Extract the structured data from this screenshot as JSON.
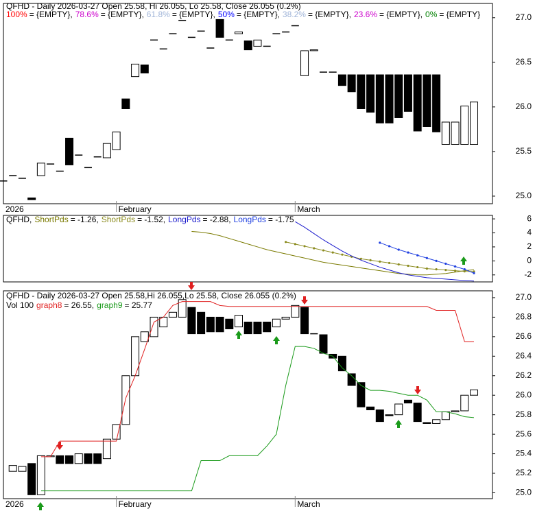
{
  "chart_data": [
    {
      "type": "candlestick",
      "title": "QFHD - Daily 2026-03-27 Open 25.58, Hi 26.055, Lo 25.58, Close 26.055 (0.2%)",
      "legend": [
        {
          "name": "100%",
          "color": "#ff0000",
          "label": "= {EMPTY},"
        },
        {
          "name": "78.6%",
          "color": "#cc00cc",
          "label": "= {EMPTY},"
        },
        {
          "name": "61.8%",
          "color": "#9fb4d8",
          "label": "= {EMPTY},"
        },
        {
          "name": "50%",
          "color": "#0000ff",
          "label": "= {EMPTY},"
        },
        {
          "name": "38.2%",
          "color": "#9fb4d8",
          "label": "= {EMPTY},"
        },
        {
          "name": "23.6%",
          "color": "#cc00cc",
          "label": "= {EMPTY},"
        },
        {
          "name": "0%",
          "color": "#008000",
          "label": "= {EMPTY}"
        }
      ],
      "categories": [
        "2026",
        null,
        null,
        null,
        null,
        null,
        null,
        null,
        null,
        null,
        null,
        null,
        "February",
        null,
        null,
        null,
        null,
        null,
        null,
        null,
        null,
        null,
        null,
        null,
        null,
        null,
        null,
        null,
        null,
        null,
        null,
        "March",
        null,
        null,
        null,
        null,
        null,
        null,
        null,
        null,
        null,
        null,
        null,
        null,
        null,
        null,
        null,
        null,
        null,
        null,
        null
      ],
      "open": [
        25.17,
        25.23,
        25.2,
        24.98,
        25.23,
        25.36,
        25.28,
        25.65,
        25.46,
        25.32,
        25.44,
        25.43,
        25.52,
        26.09,
        26.34,
        26.47,
        26.75,
        26.65,
        26.82,
        26.97,
        26.78,
        26.85,
        26.66,
        26.98,
        26.75,
        26.82,
        26.74,
        26.68,
        26.68,
        26.82,
        26.84,
        26.91,
        26.35,
        26.63,
        26.39,
        26.39,
        26.36,
        26.36,
        26.36,
        26.36,
        26.36,
        26.36,
        26.36,
        26.36,
        26.36,
        26.36,
        26.36,
        25.58,
        25.58,
        25.58,
        25.58
      ],
      "close": [
        25.17,
        25.23,
        25.2,
        24.96,
        25.37,
        25.36,
        25.28,
        25.35,
        25.46,
        25.32,
        25.44,
        25.59,
        25.72,
        25.98,
        26.48,
        26.38,
        26.75,
        26.65,
        26.82,
        26.97,
        26.78,
        26.85,
        26.66,
        26.78,
        26.75,
        26.84,
        26.64,
        26.75,
        26.68,
        26.82,
        26.84,
        26.91,
        26.63,
        26.64,
        26.39,
        26.39,
        26.24,
        26.17,
        25.98,
        25.94,
        25.82,
        25.82,
        25.88,
        25.95,
        25.73,
        25.78,
        25.72,
        25.83,
        25.83,
        26.01,
        26.055
      ],
      "ylim": [
        24.915,
        27.16
      ],
      "yticks": [
        {
          "value": 25,
          "label": "25.0"
        },
        25.5,
        {
          "value": 26,
          "label": "26.0"
        },
        26.5,
        {
          "value": 27,
          "label": "27.0"
        }
      ]
    },
    {
      "type": "line",
      "ticker": "QFHD,",
      "series": [
        {
          "name": "ShortPds",
          "label": "= -1.26,",
          "color": "#7a7a00",
          "markers": false,
          "values": [
            null,
            null,
            null,
            null,
            null,
            null,
            null,
            null,
            null,
            null,
            null,
            null,
            null,
            null,
            null,
            null,
            null,
            null,
            null,
            null,
            4.2,
            4.1,
            3.9,
            3.6,
            3.2,
            2.8,
            2.4,
            2.0,
            1.6,
            1.3,
            1.0,
            0.7,
            0.4,
            0.1,
            -0.2,
            -0.4,
            -0.6,
            -0.8,
            -1.0,
            -1.2,
            -1.4,
            -1.6,
            -1.8,
            -1.9,
            -2.0,
            -2.0,
            -1.9,
            -1.8,
            -1.6,
            -1.4,
            -1.26
          ]
        },
        {
          "name": "ShortPds",
          "label": "= -1.52,",
          "color": "#8c8c20",
          "markers": true,
          "values": [
            null,
            null,
            null,
            null,
            null,
            null,
            null,
            null,
            null,
            null,
            null,
            null,
            null,
            null,
            null,
            null,
            null,
            null,
            null,
            null,
            null,
            null,
            null,
            null,
            null,
            null,
            null,
            null,
            null,
            null,
            2.7,
            2.4,
            2.1,
            1.8,
            1.5,
            1.2,
            0.9,
            0.6,
            0.3,
            0.1,
            -0.1,
            -0.3,
            -0.5,
            -0.7,
            -0.9,
            -1.1,
            -1.2,
            -1.3,
            -1.4,
            -1.5,
            -1.52
          ]
        },
        {
          "name": "LongPds",
          "label": "= -2.88,",
          "color": "#1a1acc",
          "markers": false,
          "values": [
            null,
            null,
            null,
            null,
            null,
            null,
            null,
            null,
            null,
            null,
            null,
            null,
            null,
            null,
            null,
            null,
            null,
            null,
            null,
            null,
            null,
            null,
            null,
            null,
            null,
            null,
            null,
            null,
            null,
            null,
            null,
            5.6,
            4.8,
            3.9,
            3.0,
            2.2,
            1.4,
            0.7,
            0.1,
            -0.4,
            -0.9,
            -1.3,
            -1.7,
            -2.0,
            -2.2,
            -2.4,
            -2.5,
            -2.6,
            -2.7,
            -2.8,
            -2.88
          ]
        },
        {
          "name": "LongPds",
          "label": "= -1.75",
          "color": "#2040e0",
          "markers": true,
          "values": [
            null,
            null,
            null,
            null,
            null,
            null,
            null,
            null,
            null,
            null,
            null,
            null,
            null,
            null,
            null,
            null,
            null,
            null,
            null,
            null,
            null,
            null,
            null,
            null,
            null,
            null,
            null,
            null,
            null,
            null,
            null,
            null,
            null,
            null,
            null,
            null,
            null,
            null,
            null,
            null,
            2.6,
            2.1,
            1.6,
            1.2,
            0.8,
            0.4,
            0.0,
            -0.4,
            -0.8,
            -1.2,
            -1.75
          ]
        }
      ],
      "ylim": [
        -3,
        6.5
      ],
      "yticks": [
        -2,
        0,
        2,
        4,
        6
      ]
    },
    {
      "type": "candlestick",
      "title": "QFHD - Daily 2026-03-27 Open 25.58,Hi 26.055,Lo 25.58, Close 26.055 (0.2%)",
      "volume_label": "Vol 100",
      "categories": [
        "2026",
        null,
        null,
        null,
        null,
        null,
        null,
        null,
        null,
        null,
        null,
        null,
        "February",
        null,
        null,
        null,
        null,
        null,
        null,
        null,
        null,
        null,
        null,
        null,
        null,
        null,
        null,
        null,
        null,
        null,
        null,
        "March",
        null,
        null,
        null,
        null,
        null,
        null,
        null,
        null,
        null,
        null,
        null,
        null,
        null,
        null,
        null,
        null,
        null,
        null,
        null
      ],
      "open": [
        null,
        25.22,
        25.22,
        25.3,
        24.98,
        25.37,
        25.38,
        25.38,
        25.3,
        25.4,
        25.4,
        25.35,
        25.55,
        25.7,
        26.2,
        26.55,
        26.6,
        26.7,
        26.8,
        26.8,
        26.9,
        26.85,
        26.8,
        26.8,
        26.78,
        26.7,
        26.75,
        26.75,
        26.75,
        26.7,
        26.78,
        26.8,
        26.9,
        26.63,
        26.62,
        26.42,
        26.4,
        26.22,
        26.13,
        25.88,
        25.85,
        25.8,
        25.8,
        25.95,
        25.92,
        25.72,
        25.71,
        25.75,
        25.83,
        25.84,
        26.0
      ],
      "close": [
        null,
        25.28,
        25.27,
        24.98,
        25.38,
        25.38,
        25.3,
        25.3,
        25.4,
        25.3,
        25.3,
        25.55,
        25.7,
        26.2,
        26.6,
        26.65,
        26.8,
        26.8,
        26.85,
        26.98,
        26.63,
        26.63,
        26.65,
        26.65,
        26.68,
        26.82,
        26.63,
        26.63,
        26.65,
        26.78,
        26.8,
        26.92,
        26.63,
        26.63,
        26.43,
        26.38,
        26.25,
        26.1,
        25.88,
        25.85,
        25.73,
        25.79,
        25.91,
        25.92,
        25.73,
        25.71,
        25.75,
        25.83,
        25.84,
        26.0,
        26.055
      ],
      "series": [
        {
          "name": "graph8",
          "label": "= 26.55,",
          "color": "#e02020",
          "values": [
            null,
            null,
            null,
            null,
            25.37,
            25.37,
            25.53,
            25.53,
            25.53,
            25.53,
            25.53,
            25.53,
            25.53,
            25.97,
            26.2,
            26.47,
            26.75,
            26.8,
            26.92,
            26.96,
            26.96,
            26.96,
            26.96,
            26.92,
            26.91,
            26.91,
            26.91,
            26.91,
            26.91,
            26.91,
            26.91,
            26.91,
            26.91,
            26.91,
            26.91,
            26.91,
            26.91,
            26.91,
            26.91,
            26.91,
            26.91,
            26.91,
            26.91,
            26.91,
            26.91,
            26.91,
            26.87,
            26.87,
            26.87,
            26.55,
            26.55
          ]
        },
        {
          "name": "graph9",
          "label": "= 25.77",
          "color": "#1a9a1a",
          "values": [
            null,
            null,
            null,
            null,
            25.02,
            25.02,
            25.02,
            25.02,
            25.02,
            25.02,
            25.02,
            25.02,
            25.02,
            25.02,
            25.02,
            25.02,
            25.02,
            25.02,
            25.02,
            25.02,
            25.02,
            25.33,
            25.33,
            25.33,
            25.38,
            25.38,
            25.38,
            25.38,
            25.48,
            25.6,
            26.1,
            26.5,
            26.5,
            26.48,
            26.43,
            26.4,
            26.28,
            26.2,
            26.1,
            26.05,
            26.05,
            26.04,
            26.02,
            26.0,
            26.0,
            25.95,
            25.83,
            25.83,
            25.81,
            25.78,
            25.77
          ]
        }
      ],
      "ylim": [
        24.94,
        27.07
      ],
      "yticks": [
        {
          "value": 25,
          "label": "25.0"
        },
        25.2,
        25.4,
        25.6,
        25.8,
        {
          "value": 26,
          "label": "26.0"
        },
        26.2,
        26.4,
        26.6,
        26.8,
        {
          "value": 27,
          "label": "27.0"
        }
      ]
    }
  ]
}
